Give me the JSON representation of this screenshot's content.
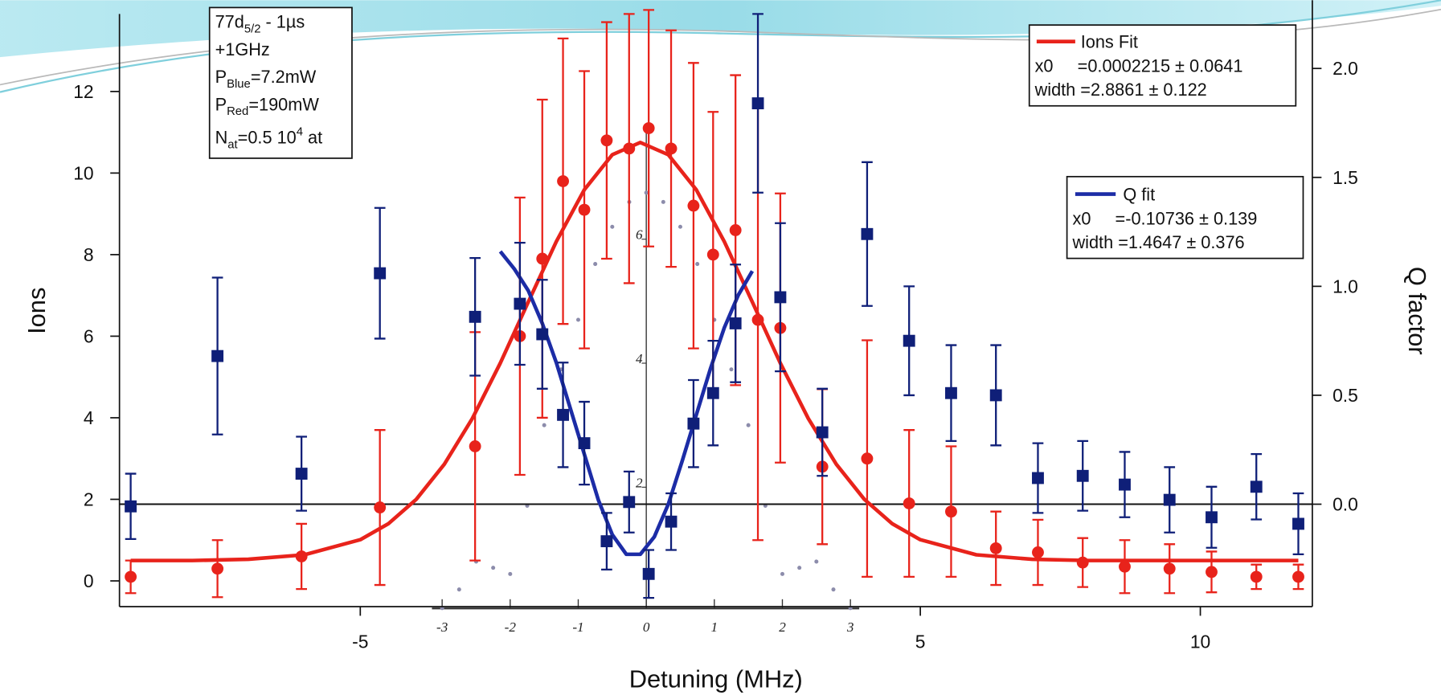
{
  "chart_data": [
    {
      "type": "scatter",
      "x_label": "Detuning (MHz)",
      "y_label": "Ions",
      "y2_label": "Q factor",
      "xlim": [
        -9.3,
        12
      ],
      "ylim": [
        -0.63,
        13.9
      ],
      "y2lim": [
        -0.47,
        2.25
      ],
      "xticks": [
        -5,
        5,
        10
      ],
      "yticks": [
        0,
        2,
        4,
        6,
        8,
        10,
        12
      ],
      "y2ticks": [
        {
          "value": 0,
          "label": "0.0"
        },
        0.5,
        {
          "value": 1,
          "label": "1.0"
        },
        1.5,
        {
          "value": 2,
          "label": "2.0"
        }
      ],
      "y2_zero_line": true,
      "annotation_box": [
        [
          "77d",
          "5/2",
          " - 1µs"
        ],
        [
          "+1GHz"
        ],
        [
          "P",
          "Blue",
          "=7.2mW"
        ],
        [
          "P",
          "Red",
          "=190mW"
        ],
        [
          "N",
          "at",
          "=0.5 10",
          "4",
          " at"
        ]
      ],
      "series": [
        {
          "name": "Ions Fit",
          "kind": "line",
          "color": "#e8231b",
          "fit_params": [
            "x0     =0.0002215 ± 0.0641",
            "width =2.8861 ± 0.122"
          ],
          "x": [
            -9.1,
            -8,
            -7,
            -6,
            -5,
            -4.5,
            -4,
            -3.5,
            -3,
            -2.5,
            -2,
            -1.5,
            -1,
            -0.5,
            0,
            0.5,
            1,
            1.5,
            2,
            2.5,
            3,
            3.5,
            4,
            4.5,
            5,
            6,
            7,
            8,
            9,
            10,
            11,
            11.75
          ],
          "values": [
            0.5,
            0.5,
            0.53,
            0.64,
            1.01,
            1.4,
            2.0,
            2.86,
            3.98,
            5.34,
            6.84,
            8.32,
            9.59,
            10.45,
            10.75,
            10.45,
            9.59,
            8.32,
            6.84,
            5.34,
            3.98,
            2.86,
            2.0,
            1.4,
            1.01,
            0.64,
            0.53,
            0.5,
            0.5,
            0.5,
            0.5,
            0.5
          ]
        },
        {
          "name": "Q fit",
          "kind": "line",
          "axis": "y2",
          "color": "#1c2ca6",
          "fit_params": [
            "x0     =-0.10736 ± 0.139",
            "width =1.4647 ± 0.376"
          ],
          "x": [
            -2.5,
            -2.25,
            -2,
            -1.75,
            -1.5,
            -1.25,
            -1,
            -0.75,
            -0.5,
            -0.25,
            0,
            0.25,
            0.5,
            0.75,
            1,
            1.25,
            1.5,
            1.75,
            2
          ],
          "values": [
            1.16,
            1.08,
            0.98,
            0.83,
            0.65,
            0.44,
            0.23,
            0.02,
            -0.14,
            -0.23,
            -0.23,
            -0.15,
            0.0,
            0.2,
            0.41,
            0.62,
            0.81,
            0.96,
            1.07
          ]
        },
        {
          "kind": "points",
          "marker": "circle",
          "color": "#e8231b",
          "x": [
            -9.1,
            -7.55,
            -6.05,
            -4.65,
            -2.95,
            -2.15,
            -1.75,
            -1.38,
            -1.0,
            -0.6,
            -0.2,
            0.15,
            0.55,
            0.95,
            1.3,
            1.7,
            2.1,
            2.5,
            3.25,
            4.05,
            4.8,
            5.55,
            6.35,
            7.1,
            7.9,
            8.65,
            9.45,
            10.2,
            11.0,
            11.75
          ],
          "values": [
            0.1,
            0.3,
            0.6,
            1.8,
            3.3,
            6.0,
            7.9,
            9.8,
            9.1,
            10.8,
            10.6,
            11.1,
            10.6,
            9.2,
            8.0,
            8.6,
            6.4,
            6.2,
            2.8,
            3.0,
            1.9,
            1.7,
            0.8,
            0.7,
            0.45,
            0.35,
            0.3,
            0.22,
            0.1,
            0.1
          ],
          "errors": [
            0.4,
            0.7,
            0.8,
            1.9,
            2.8,
            3.4,
            3.9,
            3.5,
            3.4,
            2.9,
            3.3,
            2.9,
            2.9,
            3.5,
            3.5,
            3.8,
            5.4,
            3.3,
            1.9,
            2.9,
            1.8,
            1.6,
            0.9,
            0.8,
            0.6,
            0.65,
            0.6,
            0.5,
            0.3,
            0.3
          ]
        },
        {
          "kind": "points",
          "marker": "square",
          "axis": "y2",
          "color": "#0f1f78",
          "x": [
            -9.1,
            -7.55,
            -6.05,
            -4.65,
            -2.95,
            -2.15,
            -1.75,
            -1.38,
            -1.0,
            -0.6,
            -0.2,
            0.15,
            0.55,
            0.95,
            1.3,
            1.7,
            2.1,
            2.5,
            3.25,
            4.05,
            4.8,
            5.55,
            6.35,
            7.1,
            7.9,
            8.65,
            9.45,
            10.2,
            11.0,
            11.75
          ],
          "values": [
            -0.01,
            0.68,
            0.14,
            1.06,
            0.86,
            0.92,
            0.78,
            0.41,
            0.28,
            -0.17,
            0.01,
            -0.32,
            -0.08,
            0.37,
            0.51,
            0.83,
            1.84,
            0.95,
            0.33,
            1.24,
            0.75,
            0.51,
            0.5,
            0.12,
            0.13,
            0.09,
            0.02,
            -0.06,
            0.08,
            -0.09
          ],
          "errors": [
            0.15,
            0.36,
            0.17,
            0.3,
            0.27,
            0.28,
            0.25,
            0.24,
            0.19,
            0.13,
            0.14,
            0.11,
            0.13,
            0.2,
            0.24,
            0.27,
            0.41,
            0.34,
            0.2,
            0.33,
            0.25,
            0.22,
            0.23,
            0.16,
            0.16,
            0.15,
            0.15,
            0.14,
            0.15,
            0.14
          ]
        }
      ]
    },
    {
      "type": "scatter",
      "color": "#8c8cab",
      "xlim": [
        -3.15,
        3.13
      ],
      "ylim": [
        0,
        7.78
      ],
      "xticks": [
        -3,
        -2,
        -1,
        0,
        1,
        2,
        3
      ],
      "yticks": [
        2,
        4,
        6
      ],
      "x": [
        -3,
        -2.75,
        -2.5,
        -2.25,
        -2,
        -1.75,
        -1.5,
        -1.25,
        -1,
        -0.75,
        -0.5,
        -0.25,
        0,
        0.25,
        0.5,
        0.75,
        1,
        1.25,
        1.5,
        1.75,
        2,
        2.25,
        2.5,
        2.75,
        3
      ],
      "values": [
        0.05,
        0.35,
        0.8,
        0.7,
        0.6,
        1.7,
        3.0,
        3.9,
        4.7,
        5.6,
        6.2,
        6.6,
        6.75,
        6.6,
        6.2,
        5.6,
        4.7,
        3.9,
        3.0,
        1.7,
        0.6,
        0.7,
        0.8,
        0.35,
        0.05
      ]
    }
  ]
}
